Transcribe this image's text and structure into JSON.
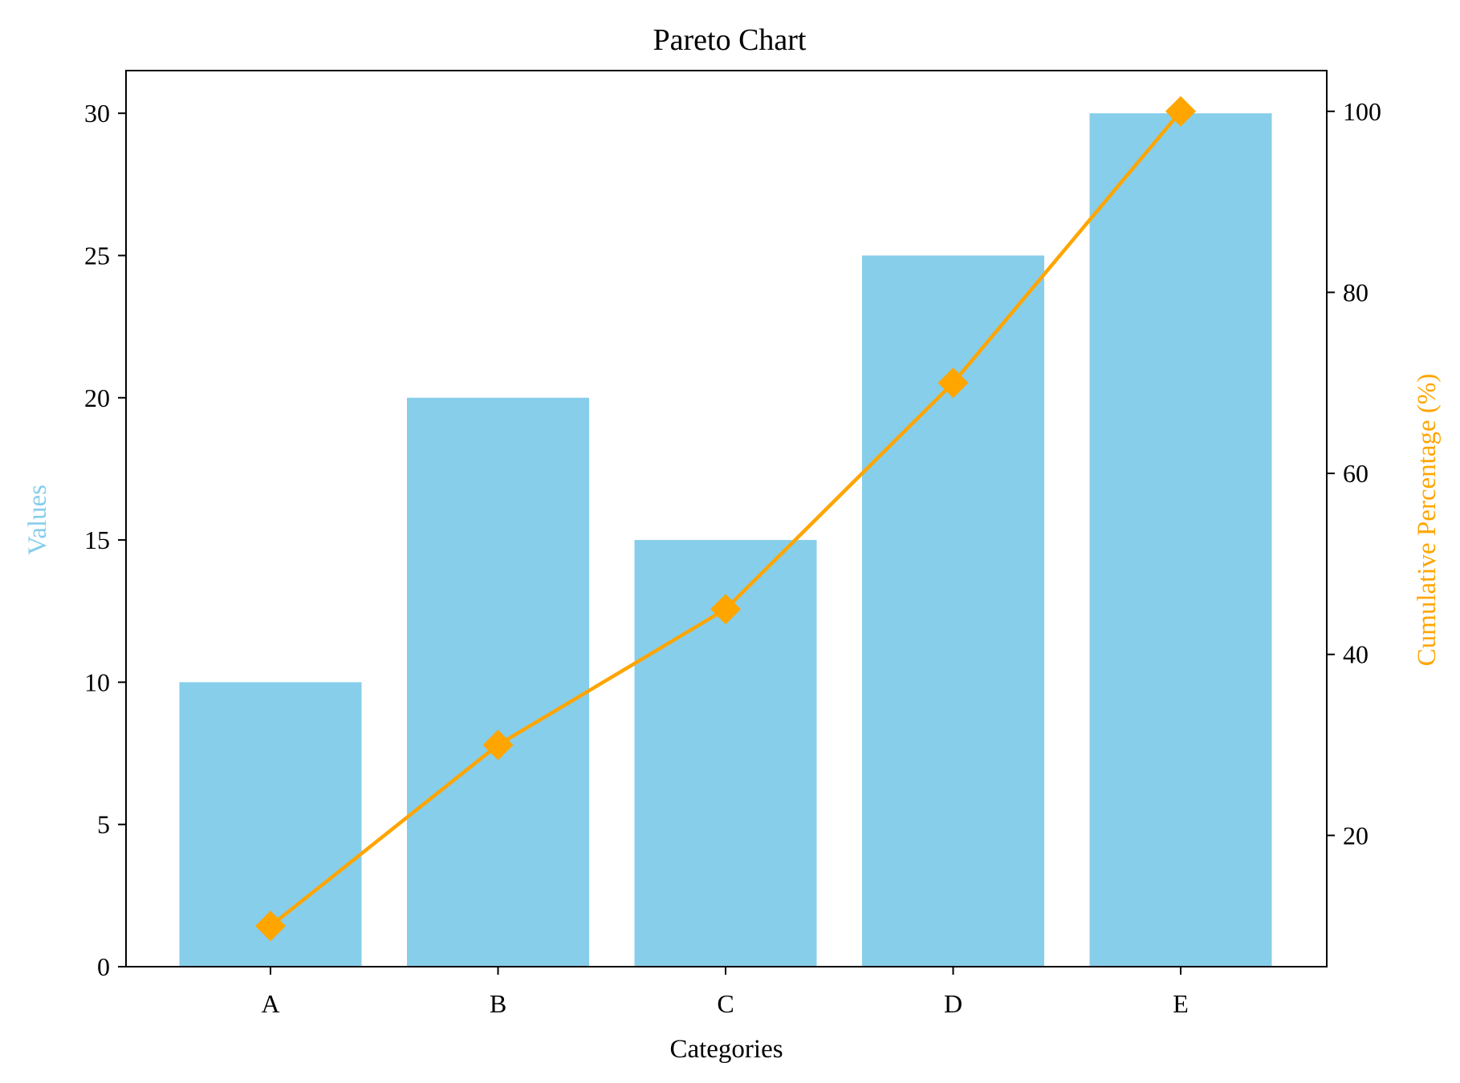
{
  "chart_data": {
    "type": "bar",
    "title": "Pareto Chart",
    "xlabel": "Categories",
    "categories": [
      "A",
      "B",
      "C",
      "D",
      "E"
    ],
    "series": [
      {
        "axis": "left",
        "kind": "bar",
        "color": "#87CEEB",
        "values": [
          10,
          20,
          15,
          25,
          30
        ]
      },
      {
        "axis": "right",
        "kind": "line",
        "marker": "diamond",
        "color": "#FFA500",
        "values": [
          10,
          30,
          45,
          70,
          100
        ]
      }
    ],
    "y_left": {
      "label": "Values",
      "label_color": "#87CEEB",
      "ylim": [
        0,
        31.5
      ],
      "ticks": [
        0,
        5,
        10,
        15,
        20,
        25,
        30
      ]
    },
    "y_right": {
      "label": "Cumulative Percentage (%)",
      "label_color": "#FFA500",
      "ylim": [
        5.5,
        104.5
      ],
      "ticks": [
        20,
        40,
        60,
        80,
        100
      ]
    },
    "grid": false,
    "legend": "none"
  }
}
